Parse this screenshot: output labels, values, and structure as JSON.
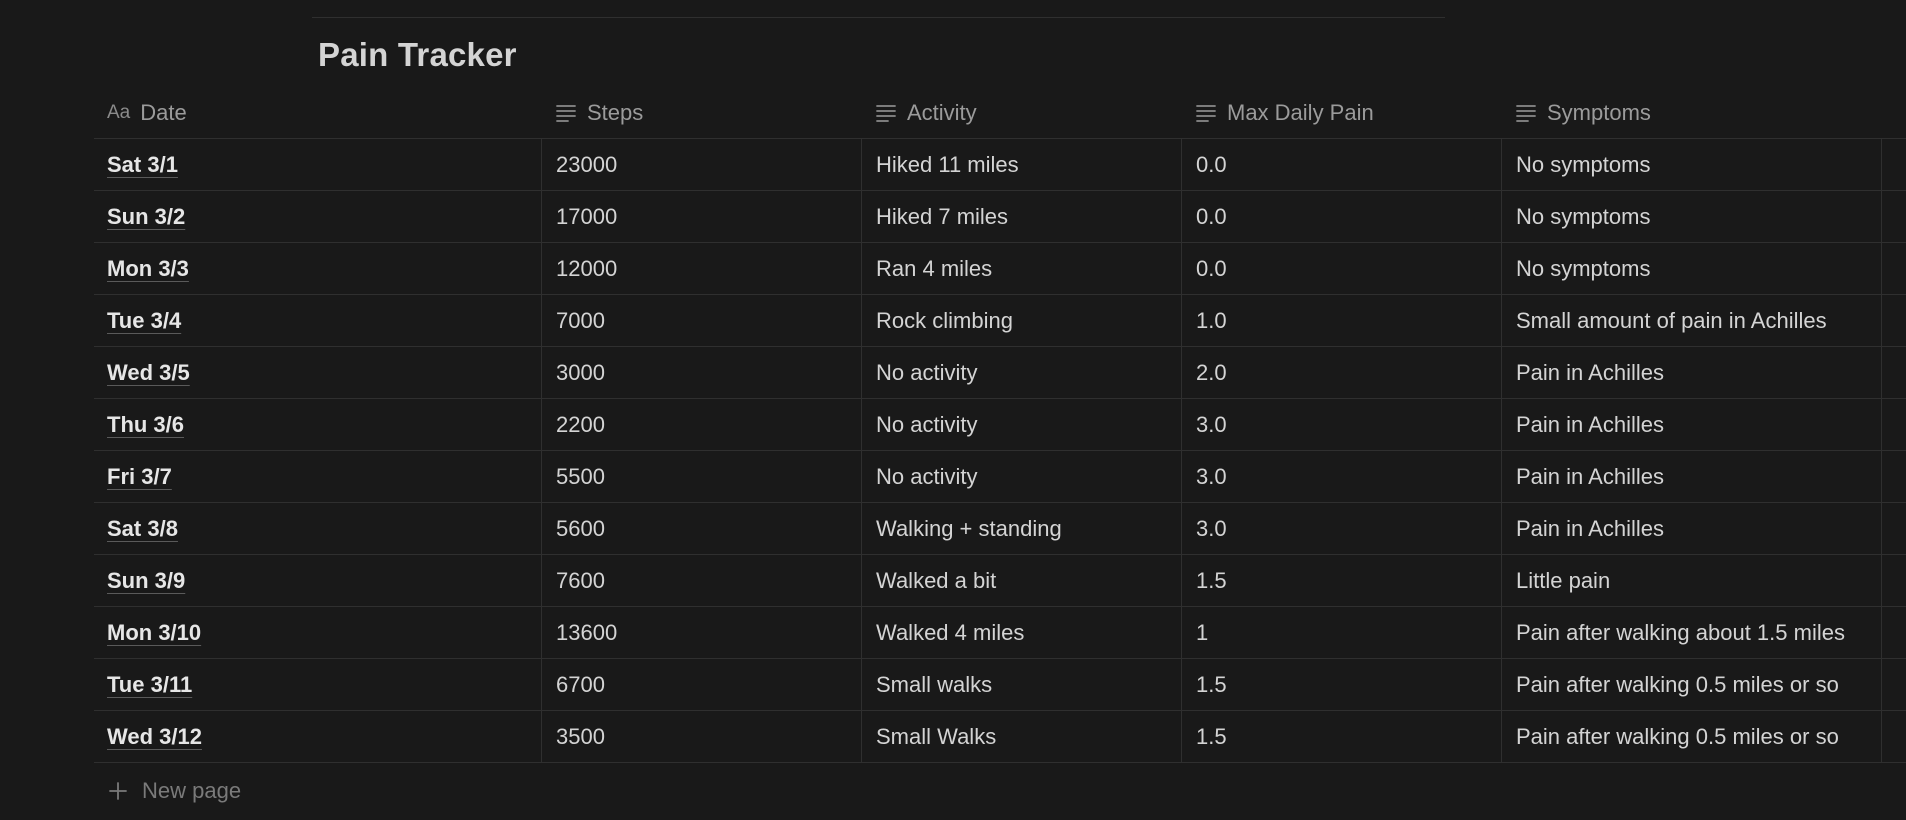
{
  "page": {
    "title": "Pain Tracker"
  },
  "table": {
    "columns": [
      {
        "label": "Date",
        "icon": "title-aa-icon"
      },
      {
        "label": "Steps",
        "icon": "text-lines-icon"
      },
      {
        "label": "Activity",
        "icon": "text-lines-icon"
      },
      {
        "label": "Max Daily Pain",
        "icon": "text-lines-icon"
      },
      {
        "label": "Symptoms",
        "icon": "text-lines-icon"
      }
    ],
    "title_icon_text": "Aa",
    "rows": [
      {
        "date": "Sat 3/1",
        "steps": "23000",
        "activity": "Hiked 11 miles",
        "pain": "0.0",
        "symptoms": "No symptoms"
      },
      {
        "date": "Sun 3/2",
        "steps": "17000",
        "activity": "Hiked 7 miles",
        "pain": "0.0",
        "symptoms": "No symptoms"
      },
      {
        "date": "Mon 3/3",
        "steps": "12000",
        "activity": "Ran 4 miles",
        "pain": "0.0",
        "symptoms": "No symptoms"
      },
      {
        "date": "Tue 3/4",
        "steps": "7000",
        "activity": "Rock climbing",
        "pain": "1.0",
        "symptoms": "Small amount of pain in Achilles"
      },
      {
        "date": "Wed 3/5",
        "steps": "3000",
        "activity": "No activity",
        "pain": "2.0",
        "symptoms": "Pain in Achilles"
      },
      {
        "date": "Thu 3/6",
        "steps": "2200",
        "activity": "No activity",
        "pain": "3.0",
        "symptoms": "Pain in Achilles"
      },
      {
        "date": "Fri 3/7",
        "steps": "5500",
        "activity": "No activity",
        "pain": "3.0",
        "symptoms": "Pain in Achilles"
      },
      {
        "date": "Sat 3/8",
        "steps": "5600",
        "activity": "Walking + standing",
        "pain": "3.0",
        "symptoms": "Pain in Achilles"
      },
      {
        "date": "Sun 3/9",
        "steps": "7600",
        "activity": "Walked a bit",
        "pain": "1.5",
        "symptoms": "Little pain"
      },
      {
        "date": "Mon 3/10",
        "steps": "13600",
        "activity": "Walked 4 miles",
        "pain": "1",
        "symptoms": "Pain after walking about 1.5 miles"
      },
      {
        "date": "Tue 3/11",
        "steps": "6700",
        "activity": "Small walks",
        "pain": "1.5",
        "symptoms": "Pain after walking 0.5 miles or so"
      },
      {
        "date": "Wed 3/12",
        "steps": "3500",
        "activity": "Small Walks",
        "pain": "1.5",
        "symptoms": "Pain after walking 0.5 miles or so"
      }
    ],
    "new_page_label": "New page"
  },
  "colors": {
    "background": "#191919",
    "text": "#d4d4d4",
    "muted": "#9b9b9b",
    "divider": "#2f2f2f"
  }
}
